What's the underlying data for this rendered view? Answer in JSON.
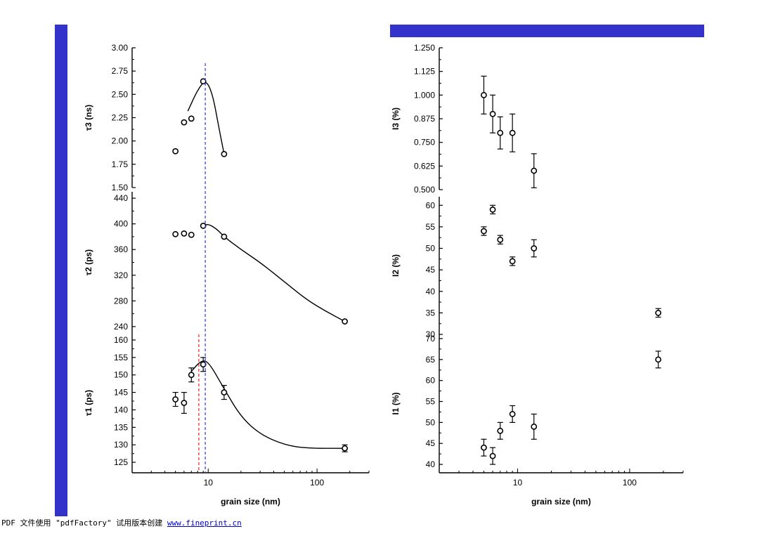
{
  "colors": {
    "slide_bar": "#3333cc",
    "blue_dashed": "#3333ee",
    "red_dashed": "#ee2222"
  },
  "footer": {
    "prefix": "PDF 文件使用 \"pdfFactory\" 试用版本创建 ",
    "link": "www.fineprint.cn"
  },
  "chart_data": [
    {
      "type": "scatter",
      "panel": "tau3",
      "ylabel": "τ3 (ns)",
      "xscale": "log",
      "xlim": [
        2,
        300
      ],
      "ylim": [
        1.5,
        3.0
      ],
      "yticks": [
        "1.50",
        "1.75",
        "2.00",
        "2.25",
        "2.50",
        "2.75",
        "3.00"
      ],
      "points": [
        {
          "x": 5,
          "y": 1.89
        },
        {
          "x": 6,
          "y": 2.2
        },
        {
          "x": 7,
          "y": 2.24
        },
        {
          "x": 9,
          "y": 2.64
        },
        {
          "x": 14,
          "y": 1.86
        }
      ],
      "fit_curve": [
        [
          6.5,
          2.32
        ],
        [
          8,
          2.55
        ],
        [
          9.5,
          2.66
        ],
        [
          11,
          2.5
        ],
        [
          12.5,
          2.15
        ],
        [
          14,
          1.86
        ]
      ]
    },
    {
      "type": "scatter",
      "panel": "tau2",
      "ylabel": "τ2 (ps)",
      "xscale": "log",
      "xlim": [
        2,
        300
      ],
      "ylim": [
        230,
        450
      ],
      "yticks": [
        "240",
        "280",
        "320",
        "360",
        "400",
        "440"
      ],
      "points": [
        {
          "x": 5,
          "y": 384
        },
        {
          "x": 6,
          "y": 385
        },
        {
          "x": 7,
          "y": 383
        },
        {
          "x": 9,
          "y": 397
        },
        {
          "x": 14,
          "y": 380
        },
        {
          "x": 180,
          "y": 248
        }
      ],
      "fit_curve": [
        [
          9,
          397
        ],
        [
          10,
          400
        ],
        [
          12,
          392
        ],
        [
          14,
          380
        ],
        [
          20,
          360
        ],
        [
          30,
          340
        ],
        [
          50,
          310
        ],
        [
          80,
          282
        ],
        [
          120,
          264
        ],
        [
          180,
          248
        ]
      ]
    },
    {
      "type": "scatter",
      "panel": "tau1",
      "ylabel": "τ1 (ps)",
      "xlabel": "grain size (nm)",
      "xscale": "log",
      "xlim": [
        2,
        300
      ],
      "ylim": [
        122,
        162
      ],
      "yticks": [
        "125",
        "130",
        "135",
        "140",
        "145",
        "150",
        "155",
        "160"
      ],
      "xticks": [
        "10",
        "100"
      ],
      "points": [
        {
          "x": 5,
          "y": 143,
          "err": 2
        },
        {
          "x": 6,
          "y": 142,
          "err": 3
        },
        {
          "x": 7,
          "y": 150,
          "err": 2
        },
        {
          "x": 9,
          "y": 153,
          "err": 2
        },
        {
          "x": 14,
          "y": 145,
          "err": 2
        },
        {
          "x": 180,
          "y": 129,
          "err": 1
        }
      ],
      "fit_curve": [
        [
          7,
          151
        ],
        [
          8.5,
          154
        ],
        [
          10,
          154
        ],
        [
          14,
          146
        ],
        [
          20,
          138
        ],
        [
          30,
          133
        ],
        [
          50,
          130
        ],
        [
          80,
          129
        ],
        [
          180,
          129
        ]
      ],
      "red_dashed_x": 8.2,
      "blue_dashed_x": 9.4
    },
    {
      "type": "scatter",
      "panel": "I3",
      "ylabel": "I3 (%)",
      "xscale": "log",
      "xlim": [
        2,
        300
      ],
      "ylim": [
        0.5,
        1.25
      ],
      "yticks": [
        "0.500",
        "0.625",
        "0.750",
        "0.875",
        "1.000",
        "1.125",
        "1.250"
      ],
      "points": [
        {
          "x": 5,
          "y": 1.0,
          "err": 0.1
        },
        {
          "x": 6,
          "y": 0.9,
          "err": 0.1
        },
        {
          "x": 7,
          "y": 0.8,
          "err": 0.085
        },
        {
          "x": 9,
          "y": 0.8,
          "err": 0.1
        },
        {
          "x": 14,
          "y": 0.6,
          "err": 0.09
        }
      ]
    },
    {
      "type": "scatter",
      "panel": "I2",
      "ylabel": "I2 (%)",
      "xscale": "log",
      "xlim": [
        2,
        300
      ],
      "ylim": [
        30,
        62
      ],
      "yticks": [
        "30",
        "35",
        "40",
        "45",
        "50",
        "55",
        "60"
      ],
      "points": [
        {
          "x": 5,
          "y": 54,
          "err": 1
        },
        {
          "x": 6,
          "y": 59,
          "err": 1
        },
        {
          "x": 7,
          "y": 52,
          "err": 1
        },
        {
          "x": 9,
          "y": 47,
          "err": 1
        },
        {
          "x": 14,
          "y": 50,
          "err": 2
        },
        {
          "x": 180,
          "y": 35,
          "err": 1
        }
      ]
    },
    {
      "type": "scatter",
      "panel": "I1",
      "ylabel": "I1 (%)",
      "xlabel": "grain size (nm)",
      "xscale": "log",
      "xlim": [
        2,
        300
      ],
      "ylim": [
        38,
        71
      ],
      "yticks": [
        "40",
        "45",
        "50",
        "55",
        "60",
        "65",
        "70"
      ],
      "xticks": [
        "10",
        "100"
      ],
      "points": [
        {
          "x": 5,
          "y": 44,
          "err": 2
        },
        {
          "x": 6,
          "y": 42,
          "err": 2
        },
        {
          "x": 7,
          "y": 48,
          "err": 2
        },
        {
          "x": 9,
          "y": 52,
          "err": 2
        },
        {
          "x": 14,
          "y": 49,
          "err": 3
        },
        {
          "x": 180,
          "y": 65,
          "err": 2
        }
      ]
    }
  ]
}
